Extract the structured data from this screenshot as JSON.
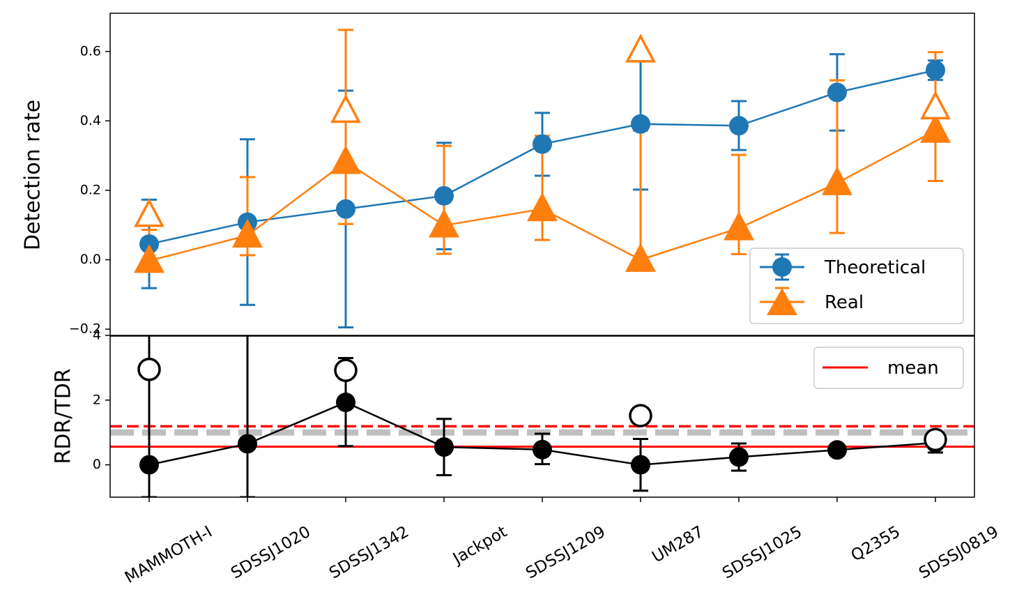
{
  "chart_data": [
    {
      "panel": "top",
      "type": "line",
      "ylabel": "Detection rate",
      "ylim": [
        -0.22,
        0.71
      ],
      "yticks": [
        -0.2,
        0.0,
        0.2,
        0.4,
        0.6
      ],
      "ytick_labels": [
        "−0.2",
        "0.0",
        "0.2",
        "0.4",
        "0.6"
      ],
      "categories": [
        "MAMMOTH-I",
        "SDSSJ1020",
        "SDSSJ1342",
        "Jackpot",
        "SDSSJ1209",
        "UM287",
        "SDSSJ1025",
        "Q2355",
        "SDSSJ0819"
      ],
      "legend_position": "lower-right",
      "series": [
        {
          "name": "Theoretical",
          "marker": "circle",
          "values": [
            0.045,
            0.108,
            0.146,
            0.184,
            0.333,
            0.391,
            0.386,
            0.482,
            0.546
          ],
          "err_low": [
            -0.082,
            -0.13,
            -0.195,
            0.03,
            0.242,
            0.202,
            0.316,
            0.372,
            0.518
          ],
          "err_high": [
            0.173,
            0.347,
            0.487,
            0.337,
            0.423,
            0.58,
            0.457,
            0.592,
            0.574
          ]
        },
        {
          "name": "Real",
          "marker": "triangle",
          "values": [
            -0.003,
            0.07,
            0.282,
            0.099,
            0.146,
            0.0,
            0.091,
            0.221,
            0.372
          ],
          "err_low": [
            -0.003,
            0.013,
            0.103,
            0.017,
            0.057,
            0.0,
            0.016,
            0.077,
            0.227
          ],
          "err_high": [
            0.086,
            0.238,
            0.662,
            0.328,
            0.357,
            0.372,
            0.302,
            0.517,
            0.598
          ]
        },
        {
          "name": "Real (open)",
          "marker": "open-triangle",
          "in_legend": false,
          "values": [
            0.128,
            null,
            0.428,
            null,
            null,
            0.602,
            null,
            null,
            0.438
          ]
        }
      ]
    },
    {
      "panel": "bottom",
      "type": "line",
      "ylabel": "RDR/TDR",
      "ylim": [
        -1.0,
        4.0
      ],
      "yticks": [
        0,
        2,
        4
      ],
      "ytick_labels": [
        "0",
        "2",
        "4"
      ],
      "xlabel": "",
      "legend_position": "upper-right",
      "series": [
        {
          "name": "RDR/TDR",
          "marker": "filled-circle",
          "in_legend": false,
          "values": [
            0.0,
            0.65,
            1.93,
            0.55,
            0.47,
            0.0,
            0.24,
            0.46,
            0.68
          ],
          "err_low": [
            -1.0,
            -1.0,
            0.58,
            -0.32,
            0.02,
            -0.8,
            -0.18,
            0.46,
            0.38
          ],
          "err_high": [
            4.0,
            4.0,
            3.3,
            1.42,
            0.96,
            0.8,
            0.66,
            0.46,
            0.98
          ]
        },
        {
          "name": "RDR/TDR (open)",
          "marker": "open-circle",
          "in_legend": false,
          "values": [
            2.95,
            null,
            2.92,
            null,
            null,
            1.52,
            null,
            null,
            0.78
          ]
        }
      ],
      "hlines": [
        {
          "name": "mean",
          "value": 0.56,
          "style": "solid",
          "color": "#ff0000",
          "in_legend": true
        },
        {
          "name": "mean (open)",
          "value": 1.19,
          "style": "dashed",
          "color": "#ff0000",
          "in_legend": false
        },
        {
          "name": "reference",
          "value": 1.0,
          "style": "dashed",
          "color": "#bfbfbf",
          "in_legend": false
        }
      ]
    }
  ],
  "colors": {
    "theoretical": "#1f77b4",
    "real": "#ff7f0e",
    "ratio": "#000000",
    "mean": "#ff0000",
    "reference": "#bfbfbf"
  }
}
